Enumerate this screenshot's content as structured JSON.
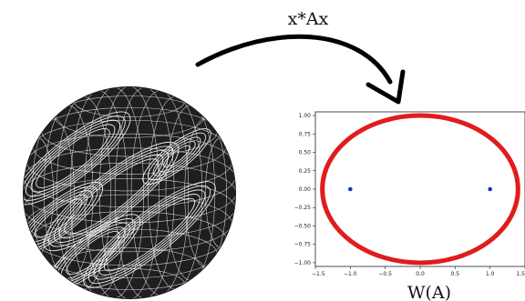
{
  "map_label": "x*Ax",
  "range_label": "W(A)",
  "colors": {
    "ellipse": "#e11c1c",
    "points": "#1233cc",
    "sphere_fill": "#1f1f1f",
    "sphere_lines": "#ffffff",
    "arrow": "#000000"
  },
  "chart_data": {
    "type": "scatter",
    "x_ticks": [
      "-1.5",
      "-1.0",
      "-0.5",
      "0.0",
      "0.5",
      "1.0",
      "1.5"
    ],
    "y_ticks": [
      "1.00",
      "0.75",
      "0.50",
      "0.25",
      "0.00",
      "-0.25",
      "-0.50",
      "-0.75",
      "-1.00"
    ],
    "xlim": [
      -1.5,
      1.5
    ],
    "ylim": [
      -1.05,
      1.05
    ],
    "ellipse": {
      "center": [
        0,
        0
      ],
      "semi_axis_x": 1.4,
      "semi_axis_y": 1.0
    },
    "points": [
      {
        "x": -1.0,
        "y": 0.0
      },
      {
        "x": 1.0,
        "y": 0.0
      }
    ],
    "grid": false
  }
}
